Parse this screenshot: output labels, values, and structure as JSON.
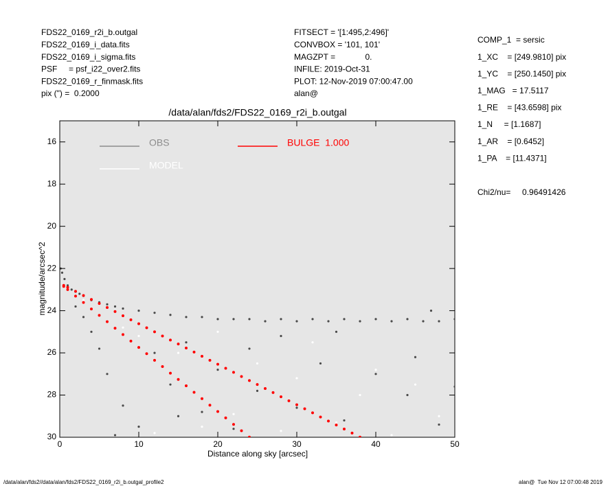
{
  "header": {
    "left": [
      "FDS22_0169_r2i_b.outgal",
      "FDS22_0169_i_data.fits",
      "FDS22_0169_i_sigma.fits",
      "PSF     = psf_i22_over2.fits",
      "FDS22_0169_r_finmask.fits",
      "pix (\") =  0.2000"
    ],
    "middle": [
      "FITSECT = '[1:495,2:496]'",
      "CONVBOX = '101, 101'",
      "MAGZPT =             0.",
      "INFILE: 2019-Oct-31",
      "PLOT: 12-Nov-2019 07:00:47.00",
      "alan@"
    ],
    "right": [
      "COMP_1  = sersic",
      "1_XC    = [249.9810] pix",
      "1_YC    = [250.1450] pix",
      "1_MAG   = 17.5117",
      "1_RE    = [43.6598] pix",
      "1_N     = [1.1687]",
      "1_AR    = [0.6452]",
      "1_PA    = [11.4371]"
    ],
    "chi2": "Chi2/nu=     0.96491426"
  },
  "footer": {
    "left": "/data/alan/fds2//data/alan/fds2/FDS22_0169_r2i_b.outgal_profile2",
    "right": "alan@  Tue Nov 12 07:00:48 2019"
  },
  "chart_data": {
    "type": "scatter",
    "title": "/data/alan/fds2/FDS22_0169_r2i_b.outgal",
    "x_label": "Distance along sky [arcsec]",
    "y_label": "magnitude/arcsec^2",
    "xlim": [
      0,
      50
    ],
    "ylim": [
      30,
      15
    ],
    "xticks": [
      0,
      10,
      20,
      30,
      40,
      50
    ],
    "yticks": [
      16,
      18,
      20,
      22,
      24,
      26,
      28,
      30
    ],
    "series": [
      {
        "name": "OBS",
        "color": "#4a4a4a",
        "legend_color": "#8c8c8c",
        "x": [
          0.1,
          0.3,
          0.6,
          1,
          1.5,
          2,
          2.5,
          3,
          4,
          5,
          6,
          7,
          8,
          10,
          12,
          14,
          16,
          18,
          20,
          22,
          24,
          26,
          28,
          30,
          32,
          34,
          36,
          38,
          40,
          42,
          44,
          46,
          47,
          48,
          50,
          2,
          3,
          4,
          5,
          6,
          8,
          10,
          12,
          14,
          16,
          18,
          20,
          22,
          25,
          28,
          30,
          33,
          36,
          40,
          44,
          48,
          7,
          15,
          24,
          35,
          45,
          50
        ],
        "values": [
          22.0,
          22.2,
          22.5,
          22.8,
          23.0,
          23.1,
          23.2,
          23.3,
          23.5,
          23.6,
          23.7,
          23.8,
          23.9,
          24.0,
          24.1,
          24.2,
          24.3,
          24.3,
          24.4,
          24.4,
          24.4,
          24.5,
          24.4,
          24.5,
          24.4,
          24.5,
          24.4,
          24.5,
          24.4,
          24.5,
          24.4,
          24.5,
          24.0,
          24.5,
          24.4,
          23.8,
          24.3,
          25.0,
          25.8,
          27.0,
          28.5,
          29.5,
          26.0,
          27.5,
          25.5,
          28.8,
          26.8,
          29.6,
          27.8,
          25.2,
          28.6,
          26.5,
          29.2,
          27.0,
          28.0,
          29.4,
          29.9,
          29.0,
          25.8,
          25.0,
          26.2,
          27.6
        ]
      },
      {
        "name": "MODEL",
        "color": "#ffffff",
        "legend_color": "#ffffff",
        "x": [
          1,
          3,
          5,
          8,
          10,
          12,
          15,
          18,
          20,
          22,
          25,
          28,
          30,
          32,
          35,
          38,
          40,
          42,
          45,
          48
        ],
        "values": [
          23.0,
          23.5,
          24.2,
          24.8,
          25.2,
          29.8,
          26.0,
          29.5,
          25.0,
          28.9,
          26.5,
          29.7,
          27.2,
          25.5,
          29.3,
          28.0,
          26.8,
          29.9,
          27.5,
          29.0
        ]
      },
      {
        "name": "BULGE  1.000",
        "color": "#ff0000",
        "legend_color": "#ff0000",
        "x": [
          0.5,
          1,
          2,
          3,
          4,
          5,
          6,
          7,
          8,
          9,
          10,
          11,
          12,
          13,
          14,
          15,
          16,
          17,
          18,
          19,
          20,
          21,
          22,
          23,
          24,
          25,
          26,
          27,
          28,
          29,
          30,
          31,
          32,
          33,
          34,
          35,
          36,
          37,
          38,
          0.5,
          1,
          2,
          3,
          4,
          5,
          6,
          7,
          8,
          9,
          10,
          11,
          12,
          13,
          14,
          15,
          16,
          17,
          18,
          19,
          20,
          21,
          22,
          23,
          24
        ],
        "values": [
          22.8,
          22.89,
          23.08,
          23.28,
          23.47,
          23.66,
          23.85,
          24.04,
          24.24,
          24.43,
          24.62,
          24.81,
          25.0,
          25.2,
          25.39,
          25.58,
          25.77,
          25.96,
          26.16,
          26.35,
          26.54,
          26.73,
          26.92,
          27.12,
          27.31,
          27.5,
          27.69,
          27.88,
          28.08,
          28.27,
          28.46,
          28.65,
          28.84,
          29.04,
          29.23,
          29.42,
          29.61,
          29.8,
          29.99,
          22.85,
          23.0,
          23.31,
          23.61,
          23.92,
          24.22,
          24.52,
          24.83,
          25.13,
          25.44,
          25.74,
          26.04,
          26.35,
          26.65,
          26.96,
          27.26,
          27.56,
          27.87,
          28.17,
          28.48,
          28.78,
          29.08,
          29.39,
          29.69,
          29.99
        ]
      }
    ]
  }
}
